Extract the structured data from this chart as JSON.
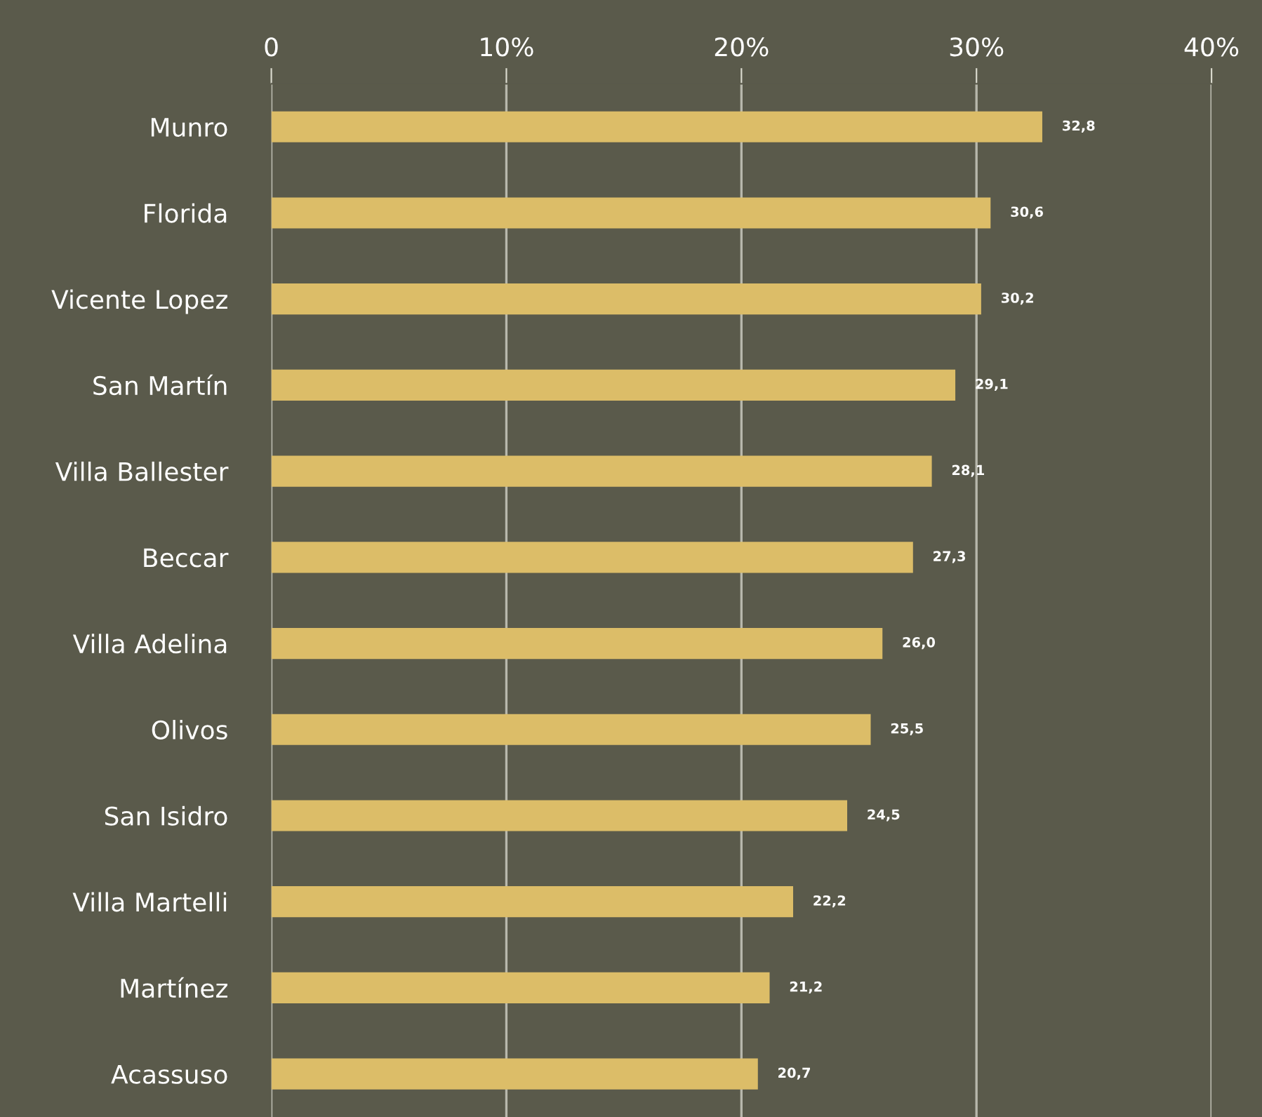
{
  "chart_data": {
    "type": "bar",
    "orientation": "horizontal",
    "categories": [
      "Munro",
      "Florida",
      "Vicente Lopez",
      "San Martín",
      "Villa Ballester",
      "Beccar",
      "Villa Adelina",
      "Olivos",
      "San Isidro",
      "Villa Martelli",
      "Martínez",
      "Acassuso"
    ],
    "values": [
      32.8,
      30.6,
      30.2,
      29.1,
      28.1,
      27.3,
      26.0,
      25.5,
      24.5,
      22.2,
      21.2,
      20.7
    ],
    "value_labels": [
      "32,8",
      "30,6",
      "30,2",
      "29,1",
      "28,1",
      "27,3",
      "26,0",
      "25,5",
      "24,5",
      "22,2",
      "21,2",
      "20,7"
    ],
    "color": "#dcbd68",
    "xlim": [
      0,
      40
    ],
    "xticks": [
      0,
      {
        "value": 10,
        "label": "10%"
      },
      {
        "value": 20,
        "label": "20%"
      },
      {
        "value": 30,
        "label": "30%"
      },
      {
        "value": 40,
        "label": "40%"
      }
    ],
    "grid": "x"
  }
}
